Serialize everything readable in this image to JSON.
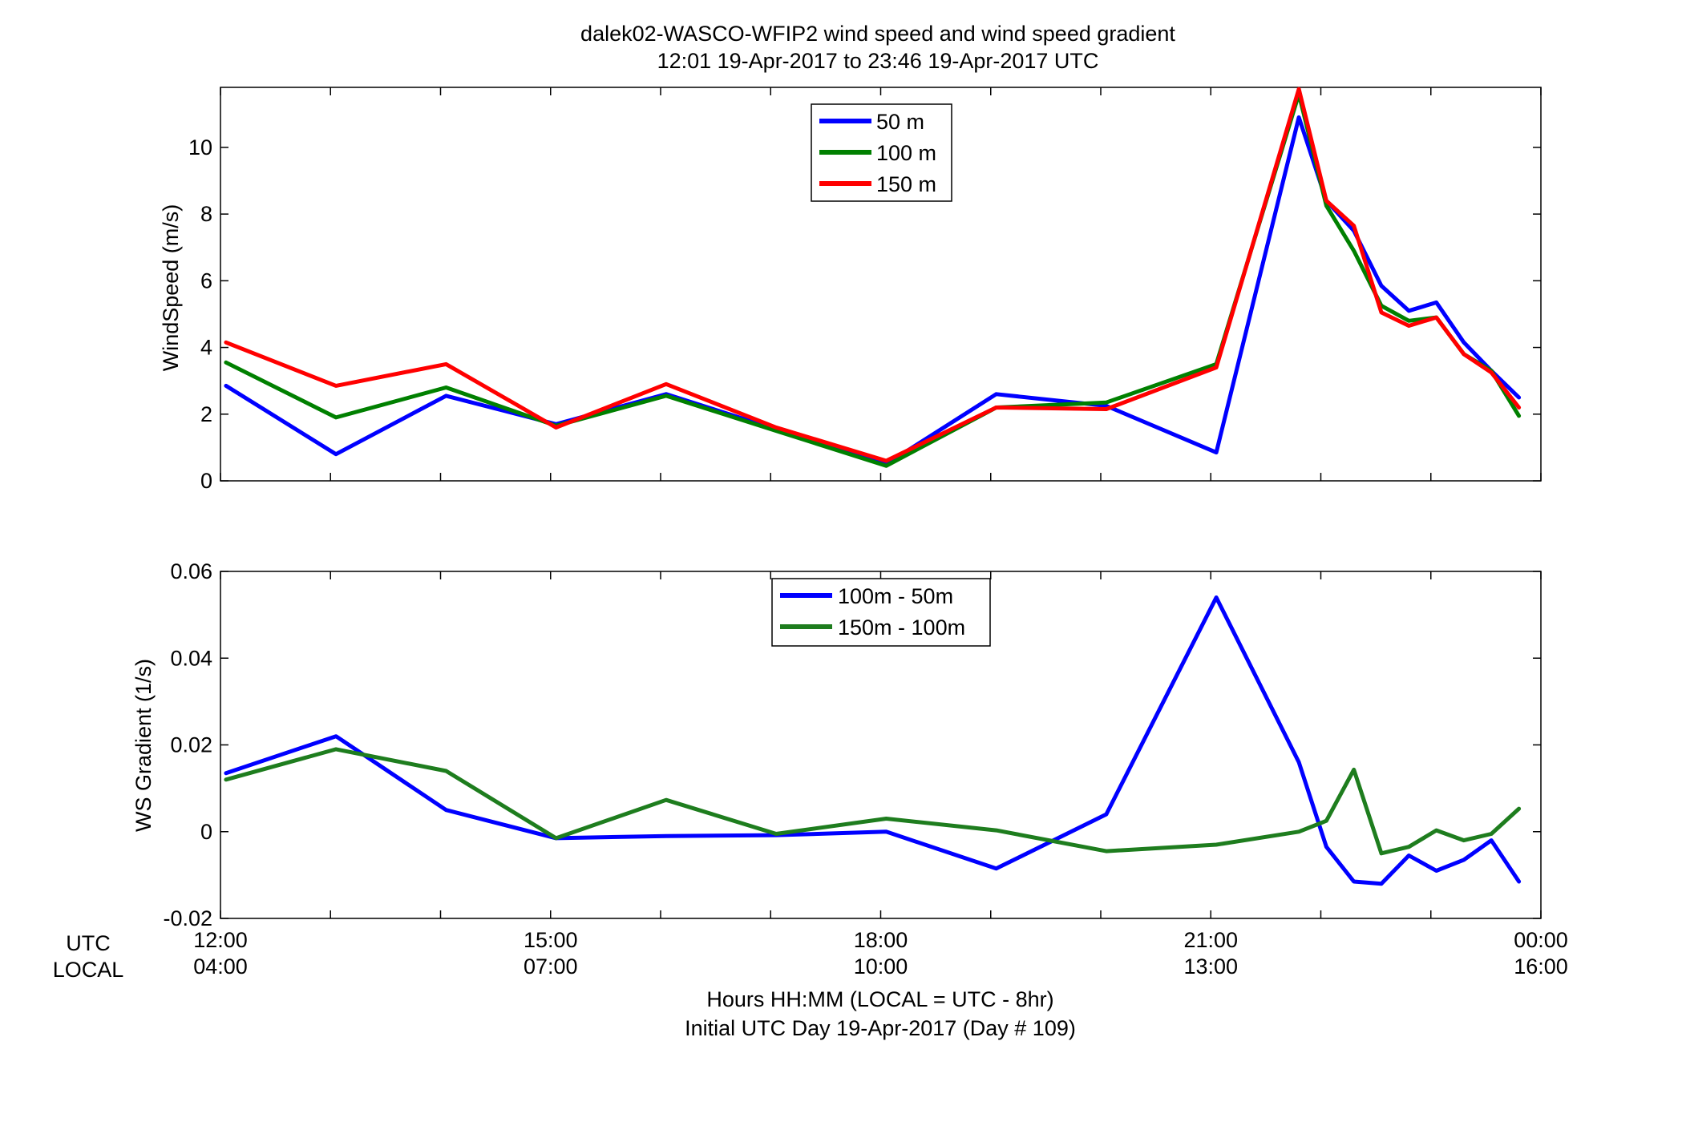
{
  "figure": {
    "title_line1": "dalek02-WASCO-WFIP2  wind speed and wind speed gradient",
    "title_line2": "12:01 19-Apr-2017 to 23:46 19-Apr-2017  UTC",
    "xlabel_line1": "Hours HH:MM  (LOCAL = UTC - 8hr)",
    "xlabel_line2": "Initial UTC Day 19-Apr-2017 (Day # 109)",
    "utc_row_label": "UTC",
    "local_row_label": "LOCAL"
  },
  "chart_data": [
    {
      "type": "line",
      "title": "",
      "ylabel": "WindSpeed (m/s)",
      "xlim": [
        12,
        24
      ],
      "ylim": [
        0,
        11.8
      ],
      "yticks": [
        0,
        2,
        4,
        6,
        8,
        10
      ],
      "ytick_labels": [
        "0",
        "2",
        "4",
        "6",
        "8",
        "10"
      ],
      "grid": false,
      "legend_position": "top-center",
      "series": [
        {
          "name": "50 m",
          "color": "#0000ff",
          "x": [
            12.05,
            13.05,
            14.05,
            15.05,
            16.05,
            17.05,
            18.05,
            19.05,
            20.05,
            21.05,
            21.8,
            22.05,
            22.3,
            22.55,
            22.8,
            23.05,
            23.3,
            23.55,
            23.8
          ],
          "y": [
            2.85,
            0.8,
            2.55,
            1.7,
            2.6,
            1.55,
            0.5,
            2.6,
            2.25,
            0.85,
            10.9,
            8.4,
            7.5,
            5.85,
            5.1,
            5.35,
            4.15,
            3.3,
            2.5
          ]
        },
        {
          "name": "100 m",
          "color": "#008000",
          "x": [
            12.05,
            13.05,
            14.05,
            15.05,
            16.05,
            17.05,
            18.05,
            19.05,
            20.05,
            21.05,
            21.8,
            22.05,
            22.3,
            22.55,
            22.8,
            23.05,
            23.3,
            23.55,
            23.8
          ],
          "y": [
            3.55,
            1.9,
            2.8,
            1.65,
            2.55,
            1.5,
            0.45,
            2.2,
            2.35,
            3.5,
            11.6,
            8.25,
            6.9,
            5.25,
            4.8,
            4.9,
            3.8,
            3.3,
            1.95
          ]
        },
        {
          "name": "150 m",
          "color": "#ff0000",
          "x": [
            12.05,
            13.05,
            14.05,
            15.05,
            16.05,
            17.05,
            18.05,
            19.05,
            20.05,
            21.05,
            21.8,
            22.05,
            22.3,
            22.55,
            22.8,
            23.05,
            23.3,
            23.55,
            23.8
          ],
          "y": [
            4.15,
            2.85,
            3.5,
            1.6,
            2.9,
            1.6,
            0.6,
            2.2,
            2.15,
            3.4,
            11.75,
            8.4,
            7.65,
            5.05,
            4.65,
            4.9,
            3.8,
            3.25,
            2.2
          ]
        }
      ]
    },
    {
      "type": "line",
      "title": "",
      "ylabel": "WS Gradient (1/s)",
      "xlim": [
        12,
        24
      ],
      "ylim": [
        -0.02,
        0.06
      ],
      "yticks": [
        -0.02,
        0,
        0.02,
        0.04,
        0.06
      ],
      "ytick_labels": [
        "-0.02",
        "0",
        "0.02",
        "0.04",
        "0.06"
      ],
      "xticks": [
        12,
        15,
        18,
        21,
        24
      ],
      "xtick_labels_utc": [
        "12:00",
        "15:00",
        "18:00",
        "21:00",
        "00:00"
      ],
      "xtick_labels_local": [
        "04:00",
        "07:00",
        "10:00",
        "13:00",
        "16:00"
      ],
      "grid": false,
      "legend_position": "top-center",
      "series": [
        {
          "name": "100m - 50m",
          "color": "#0000ff",
          "x": [
            12.05,
            13.05,
            14.05,
            15.05,
            16.05,
            17.05,
            18.05,
            19.05,
            20.05,
            21.05,
            21.8,
            22.05,
            22.3,
            22.55,
            22.8,
            23.05,
            23.3,
            23.55,
            23.8
          ],
          "y": [
            0.0135,
            0.022,
            0.005,
            -0.0015,
            -0.001,
            -0.0008,
            0.0,
            -0.0085,
            0.004,
            0.054,
            0.016,
            -0.0035,
            -0.0115,
            -0.012,
            -0.0055,
            -0.009,
            -0.0065,
            -0.002,
            -0.0115
          ]
        },
        {
          "name": "150m - 100m",
          "color": "#1e7d1e",
          "x": [
            12.05,
            13.05,
            14.05,
            15.05,
            16.05,
            17.05,
            18.05,
            19.05,
            20.05,
            21.05,
            21.8,
            22.05,
            22.3,
            22.55,
            22.8,
            23.05,
            23.3,
            23.55,
            23.8
          ],
          "y": [
            0.012,
            0.019,
            0.014,
            -0.0015,
            0.0073,
            -0.0005,
            0.003,
            0.0003,
            -0.0045,
            -0.003,
            0.0,
            0.0025,
            0.0143,
            -0.005,
            -0.0035,
            0.0003,
            -0.002,
            -0.0005,
            0.0053
          ]
        }
      ]
    }
  ]
}
